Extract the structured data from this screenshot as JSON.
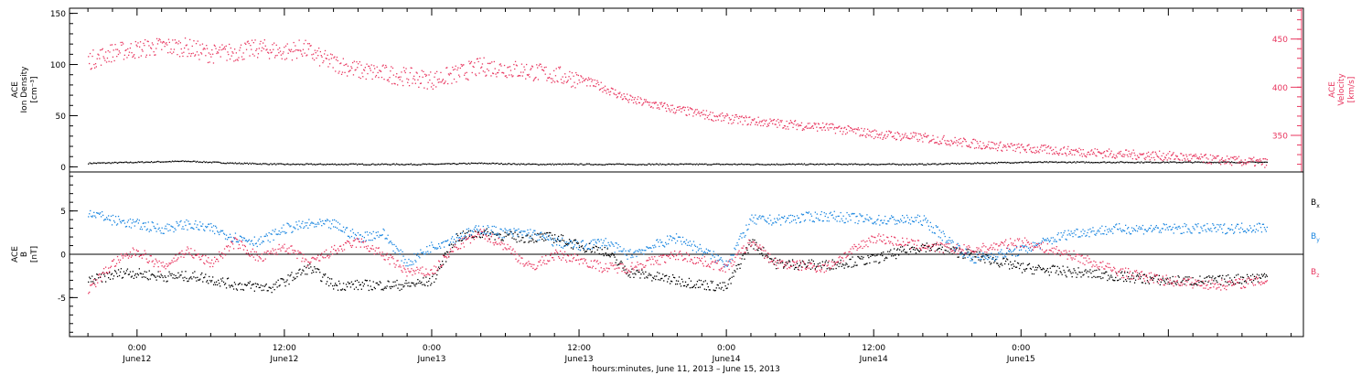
{
  "colors": {
    "density": "#000000",
    "velocity": "#e8365f",
    "bx": "#000000",
    "by": "#1a86e0",
    "bz": "#e8365f",
    "frame": "#000000"
  },
  "chart_data": [
    {
      "type": "scatter",
      "panel": "top",
      "y_left": {
        "label_lines": [
          "ACE",
          "Ion Density",
          "[cm⁻³]"
        ],
        "range": [
          -5,
          155
        ],
        "ticks": [
          0,
          50,
          100,
          150
        ],
        "tick_labels": [
          "0",
          "50",
          "100",
          "150"
        ]
      },
      "y_right": {
        "label_lines": [
          "ACE",
          "Velocity",
          "[km/s]"
        ],
        "range": [
          312,
          482
        ],
        "ticks": [
          350,
          400,
          450
        ],
        "tick_labels": [
          "350",
          "400",
          "450"
        ]
      },
      "series": [
        {
          "id": "density",
          "axis": "left",
          "x_hours": [
            -4,
            0,
            4,
            8,
            12,
            16,
            20,
            24,
            28,
            32,
            36,
            40,
            44,
            48,
            52,
            56,
            60,
            64,
            68,
            72,
            76,
            80,
            84,
            88,
            92
          ],
          "y": [
            4,
            5,
            6,
            4,
            3,
            3,
            3,
            3,
            4,
            3,
            3,
            3,
            3,
            3,
            3,
            3,
            3,
            3,
            4,
            5,
            5,
            5,
            5,
            5,
            5
          ]
        },
        {
          "id": "velocity",
          "axis": "right",
          "x_hours": [
            -4,
            -2,
            0,
            2,
            4,
            6,
            8,
            10,
            12,
            13.5,
            15,
            18,
            21,
            24,
            26,
            28,
            30,
            32,
            34,
            36,
            38,
            40,
            44,
            48,
            52,
            56,
            60,
            64,
            68,
            72,
            76,
            80,
            84,
            88,
            92
          ],
          "y": [
            428,
            437,
            440,
            443,
            442,
            435,
            437,
            441,
            437,
            441,
            430,
            418,
            413,
            408,
            414,
            422,
            420,
            417,
            413,
            409,
            400,
            388,
            377,
            368,
            363,
            359,
            352,
            348,
            342,
            337,
            334,
            331,
            329,
            325,
            322
          ]
        }
      ]
    },
    {
      "type": "scatter",
      "panel": "bottom",
      "y_left": {
        "label_lines": [
          "ACE",
          "B",
          "[nT]"
        ],
        "range": [
          -9.5,
          9.5
        ],
        "ticks": [
          -5,
          0,
          5
        ],
        "tick_labels": [
          "-5",
          "0",
          "5"
        ]
      },
      "zero_line": true,
      "series": [
        {
          "id": "bx",
          "name": "B",
          "subscript": "x",
          "x_hours": [
            -4,
            -1,
            2,
            5,
            8,
            11,
            14,
            16,
            19,
            22,
            24,
            26,
            28,
            31,
            34,
            36,
            38,
            40,
            44,
            48,
            50,
            52,
            56,
            60,
            64,
            68,
            72,
            76,
            80,
            84,
            88,
            92
          ],
          "y": [
            -3.0,
            -2.0,
            -2.5,
            -2.5,
            -3.5,
            -3.8,
            -1.5,
            -3.5,
            -3.5,
            -3.5,
            -3.0,
            2.0,
            2.5,
            2.0,
            2.0,
            1.0,
            0.5,
            -2.0,
            -3.0,
            -3.8,
            1.5,
            -1.0,
            -1.2,
            -0.5,
            1.0,
            0.0,
            -1.5,
            -2.0,
            -2.5,
            -3.0,
            -3.0,
            -2.5
          ]
        },
        {
          "id": "by",
          "name": "B",
          "subscript": "y",
          "x_hours": [
            -4,
            -2,
            0,
            2,
            4,
            6,
            8,
            10,
            12,
            14,
            16,
            18,
            20,
            22,
            24,
            26,
            28,
            30,
            32,
            34,
            36,
            38,
            40,
            44,
            48,
            50,
            52,
            56,
            60,
            64,
            68,
            72,
            76,
            80,
            84,
            88,
            92
          ],
          "y": [
            5.0,
            4.0,
            3.5,
            3.0,
            3.5,
            3.0,
            2.0,
            1.5,
            3.0,
            3.5,
            3.5,
            2.0,
            2.5,
            -1.0,
            1.0,
            2.0,
            3.0,
            2.5,
            2.5,
            1.5,
            1.0,
            1.5,
            0.0,
            2.0,
            -1.0,
            4.0,
            4.0,
            4.5,
            4.0,
            4.0,
            -0.5,
            0.5,
            2.5,
            3.0,
            3.0,
            3.0,
            3.2
          ]
        },
        {
          "id": "bz",
          "name": "B",
          "subscript": "z",
          "x_hours": [
            -4,
            -2,
            0,
            2,
            4,
            6,
            8,
            10,
            12,
            14,
            16,
            18,
            20,
            22,
            24,
            26,
            28,
            30,
            32,
            34,
            36,
            38,
            40,
            44,
            48,
            50,
            52,
            56,
            60,
            64,
            68,
            72,
            76,
            80,
            84,
            88,
            92
          ],
          "y": [
            -4.0,
            -1.0,
            0.5,
            -1.5,
            0.5,
            -1.0,
            1.5,
            -0.5,
            1.0,
            -1.0,
            0.5,
            1.5,
            0.0,
            -2.0,
            -2.0,
            1.0,
            2.5,
            1.0,
            -1.5,
            0.0,
            -0.5,
            -1.5,
            -1.5,
            0.0,
            -1.5,
            1.5,
            -1.0,
            -1.5,
            2.0,
            1.0,
            0.5,
            1.5,
            0.0,
            -2.0,
            -3.0,
            -3.5,
            -3.0
          ]
        }
      ]
    }
  ],
  "x_axis": {
    "range_hours": [
      -5.5,
      95
    ],
    "ticks": [
      {
        "hour": 0,
        "time": "0:00",
        "day": "June12"
      },
      {
        "hour": 12,
        "time": "12:00",
        "day": "June12"
      },
      {
        "hour": 24,
        "time": "0:00",
        "day": "June13"
      },
      {
        "hour": 36,
        "time": "12:00",
        "day": "June13"
      },
      {
        "hour": 48,
        "time": "0:00",
        "day": "June14"
      },
      {
        "hour": 60,
        "time": "12:00",
        "day": "June14"
      },
      {
        "hour": 72,
        "time": "0:00",
        "day": "June15"
      }
    ],
    "label": "hours:minutes, June 11, 2013 – June 15, 2013"
  }
}
